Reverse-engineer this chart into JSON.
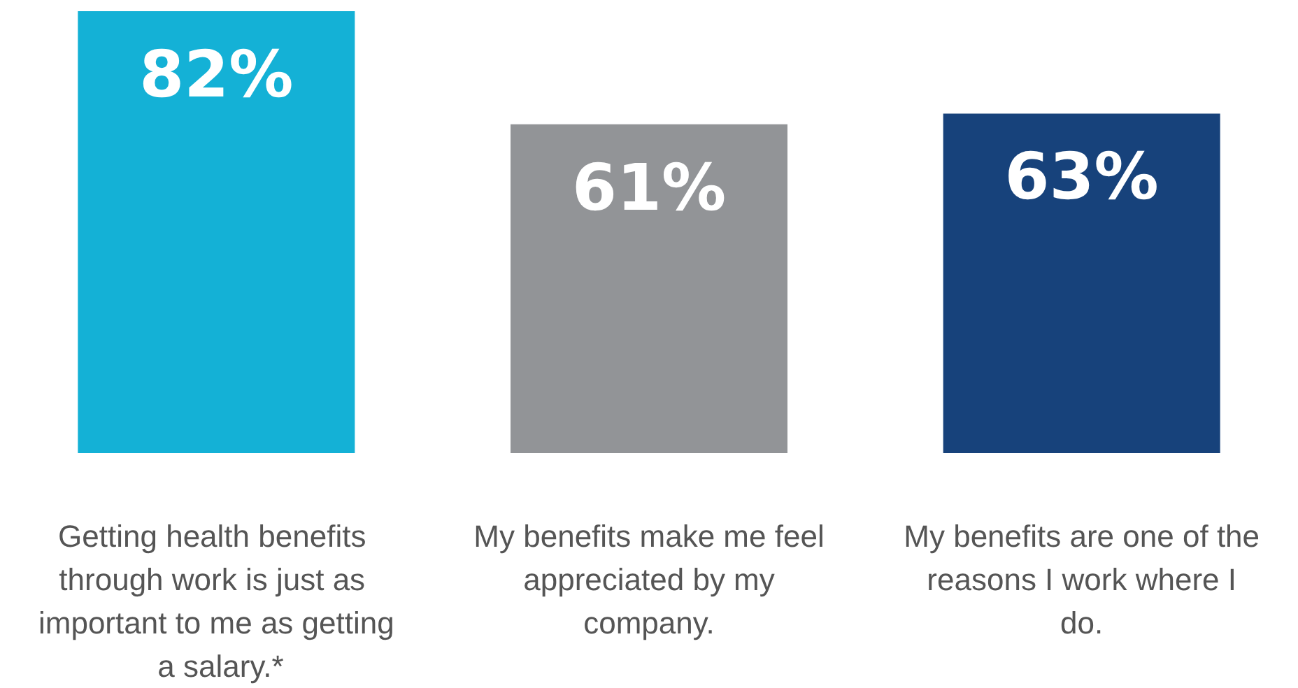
{
  "chart_data": {
    "type": "bar",
    "categories": [
      "Getting health benefits through work is just as important to me as getting a salary.*",
      "My benefits make me feel appreciated by my company.",
      "My benefits are one of the reasons I work where I do."
    ],
    "values": [
      82,
      61,
      63
    ],
    "colors": [
      "#14b1d6",
      "#929497",
      "#17427b"
    ],
    "value_labels": [
      "82%",
      "61%",
      "63%"
    ],
    "grid": false
  }
}
